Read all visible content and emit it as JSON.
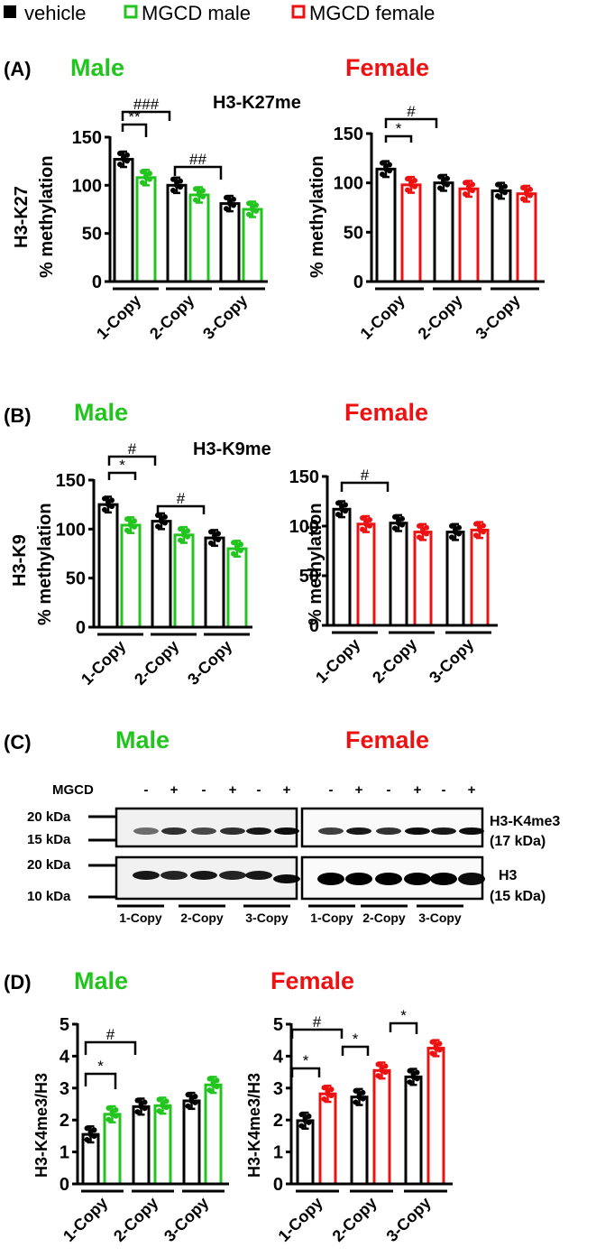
{
  "colors": {
    "vehicle": "#000000",
    "male": "#22c41e",
    "female": "#ee1111"
  },
  "legend": {
    "items": [
      {
        "label": "vehicle",
        "style": "filled-square",
        "color": "#000000"
      },
      {
        "label": "MGCD male",
        "style": "open-square",
        "color": "#22c41e"
      },
      {
        "label": "MGCD female",
        "style": "open-square",
        "color": "#ee1111"
      }
    ]
  },
  "panels": {
    "A": {
      "letter": "(A)",
      "male_title": "Male",
      "female_title": "Female",
      "center_title": "H3-K27me",
      "male_ylabel1": "H3-K27",
      "male_ylabel2": "% methylation",
      "female_ylabel": "% methylation"
    },
    "B": {
      "letter": "(B)",
      "male_title": "Male",
      "female_title": "Female",
      "center_title": "H3-K9me",
      "male_ylabel1": "H3-K9",
      "male_ylabel2": "% methylation",
      "female_ylabel": "% methylation"
    },
    "C": {
      "letter": "(C)",
      "male_title": "Male",
      "female_title": "Female",
      "mgcd_label": "MGCD",
      "mgcd_signs": [
        "-",
        "+",
        "-",
        "+",
        "-",
        "+",
        "-",
        "+",
        "-",
        "+",
        "-",
        "+"
      ],
      "markers_top": [
        "20 kDa",
        "15 kDa"
      ],
      "markers_bottom": [
        "20 kDa",
        "10 kDa"
      ],
      "band_top_label": "H3-K4me3",
      "band_top_kda": "(17 kDa)",
      "band_bottom_label": "H3",
      "band_bottom_kda": "(15 kDa)",
      "lane_groups": [
        "1-Copy",
        "2-Copy",
        "3-Copy",
        "1-Copy",
        "2-Copy",
        "3-Copy"
      ]
    },
    "D": {
      "letter": "(D)",
      "male_title": "Male",
      "female_title": "Female",
      "ylabel": "H3-K4me3/H3"
    }
  },
  "axis": {
    "A": {
      "ticks": [
        "0",
        "50",
        "100",
        "150"
      ]
    },
    "B": {
      "ticks": [
        "0",
        "50",
        "100",
        "150"
      ]
    },
    "D": {
      "ticks": [
        "0",
        "1",
        "2",
        "3",
        "4",
        "5"
      ]
    }
  },
  "categories": [
    "1-Copy",
    "2-Copy",
    "3-Copy"
  ],
  "annotations": {
    "A_male": [
      "**",
      "###",
      "##"
    ],
    "A_female": [
      "*",
      "#"
    ],
    "B_male": [
      "*",
      "#",
      "#"
    ],
    "B_female": [
      "#"
    ],
    "D_male": [
      "*",
      "#"
    ],
    "D_female": [
      "*",
      "#",
      "*",
      "*"
    ]
  },
  "chart_data": [
    {
      "type": "bar",
      "title": "H3-K27me — Male",
      "xlabel": "",
      "ylabel": "H3-K27 % methylation",
      "ylim": [
        0,
        150
      ],
      "categories": [
        "1-Copy",
        "2-Copy",
        "3-Copy"
      ],
      "series": [
        {
          "name": "vehicle",
          "values": [
            127,
            100,
            81
          ]
        },
        {
          "name": "MGCD male",
          "values": [
            108,
            90,
            75
          ]
        }
      ],
      "annotations": [
        "** 1-Copy vehicle vs MGCD",
        "### 1-Copy vs 2-Copy vehicle",
        "## 2-Copy vs 3-Copy vehicle"
      ]
    },
    {
      "type": "bar",
      "title": "H3-K27me — Female",
      "xlabel": "",
      "ylabel": "% methylation",
      "ylim": [
        0,
        150
      ],
      "categories": [
        "1-Copy",
        "2-Copy",
        "3-Copy"
      ],
      "series": [
        {
          "name": "vehicle",
          "values": [
            114,
            100,
            92
          ]
        },
        {
          "name": "MGCD female",
          "values": [
            98,
            94,
            89
          ]
        }
      ],
      "annotations": [
        "* 1-Copy vehicle vs MGCD",
        "# 1-Copy vs 2-Copy vehicle"
      ]
    },
    {
      "type": "bar",
      "title": "H3-K9me — Male",
      "xlabel": "",
      "ylabel": "H3-K9 % methylation",
      "ylim": [
        0,
        150
      ],
      "categories": [
        "1-Copy",
        "2-Copy",
        "3-Copy"
      ],
      "series": [
        {
          "name": "vehicle",
          "values": [
            125,
            108,
            91
          ]
        },
        {
          "name": "MGCD male",
          "values": [
            104,
            94,
            80
          ]
        }
      ],
      "annotations": [
        "* 1-Copy vehicle vs MGCD",
        "# 1-Copy vs 2-Copy vehicle",
        "# 2-Copy vs 3-Copy vehicle"
      ]
    },
    {
      "type": "bar",
      "title": "H3-K9me — Female",
      "xlabel": "",
      "ylabel": "% methylation",
      "ylim": [
        0,
        150
      ],
      "categories": [
        "1-Copy",
        "2-Copy",
        "3-Copy"
      ],
      "series": [
        {
          "name": "vehicle",
          "values": [
            117,
            103,
            94
          ]
        },
        {
          "name": "MGCD female",
          "values": [
            102,
            94,
            96
          ]
        }
      ],
      "annotations": [
        "# 1-Copy vs 2-Copy vehicle"
      ]
    },
    {
      "type": "bar",
      "title": "H3-K4me3/H3 — Male",
      "xlabel": "",
      "ylabel": "H3-K4me3/H3",
      "ylim": [
        0,
        5
      ],
      "categories": [
        "1-Copy",
        "2-Copy",
        "3-Copy"
      ],
      "series": [
        {
          "name": "vehicle",
          "values": [
            1.55,
            2.42,
            2.6
          ]
        },
        {
          "name": "MGCD male",
          "values": [
            2.18,
            2.45,
            3.1
          ]
        }
      ],
      "annotations": [
        "* 1-Copy vehicle vs MGCD",
        "# 1-Copy vs 2-Copy vehicle"
      ]
    },
    {
      "type": "bar",
      "title": "H3-K4me3/H3 — Female",
      "xlabel": "",
      "ylabel": "H3-K4me3/H3",
      "ylim": [
        0,
        5
      ],
      "categories": [
        "1-Copy",
        "2-Copy",
        "3-Copy"
      ],
      "series": [
        {
          "name": "vehicle",
          "values": [
            1.98,
            2.72,
            3.35
          ]
        },
        {
          "name": "MGCD female",
          "values": [
            2.82,
            3.55,
            4.25
          ]
        }
      ],
      "annotations": [
        "* 1-Copy vehicle vs MGCD",
        "# 1-Copy vs 2-Copy vehicle",
        "* 2-Copy vehicle vs MGCD",
        "* 3-Copy vehicle vs MGCD"
      ]
    }
  ]
}
